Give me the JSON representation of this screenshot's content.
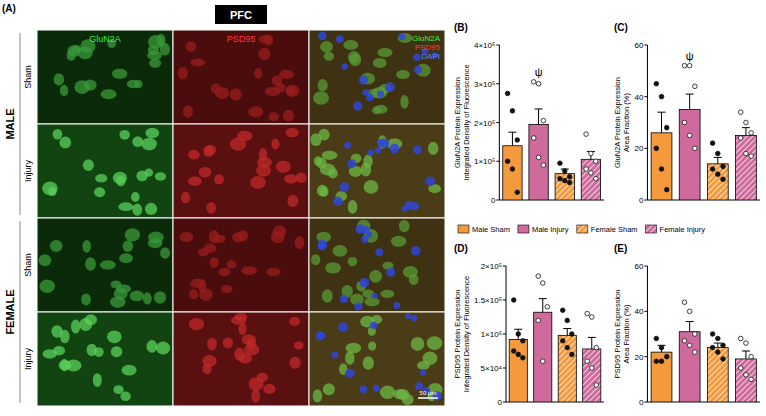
{
  "panel_a": {
    "label": "(A)",
    "region": "PFC",
    "channels": [
      "GluN2A",
      "PSD95"
    ],
    "merge": [
      "GluN2A",
      "PSD95",
      "DAPI"
    ],
    "channel_colors": [
      "#3df03d",
      "#ff3a3a",
      "#5b86ff"
    ],
    "sexes": [
      {
        "label": "MALE",
        "rows": [
          "Sham",
          "Injury"
        ]
      },
      {
        "label": "FEMALE",
        "rows": [
          "Sham",
          "Injury"
        ]
      }
    ],
    "scale_bar": "50 μm"
  },
  "shared_legend": {
    "entries": [
      {
        "name": "Male Sham",
        "color": "#f59a3c"
      },
      {
        "name": "Male Injury",
        "color": "#cf6a9c"
      },
      {
        "name": "Female Sham",
        "color": "#f59a3c"
      },
      {
        "name": "Female Injury",
        "color": "#cf6a9c"
      }
    ]
  },
  "chart_data": [
    {
      "type": "bar",
      "panel": "(B)",
      "ylabel": [
        "GluN2A Protein Expression",
        "Integrated Density of Fluorescence"
      ],
      "categories": [
        null,
        null,
        null,
        null
      ],
      "values": [
        140000,
        195000,
        68000,
        105000
      ],
      "errors": [
        35000,
        40000,
        12000,
        20000
      ],
      "points": [
        [
          275000,
          230000,
          155000,
          100000,
          80000,
          20000
        ],
        [
          305000,
          300000,
          205000,
          160000,
          110000,
          90000
        ],
        [
          95000,
          75000,
          60000,
          55000,
          50000,
          45000
        ],
        [
          170000,
          120000,
          100000,
          80000,
          70000,
          55000
        ]
      ],
      "colors": [
        "#f59a3c",
        "#cf6a9c",
        "#f59a3c",
        "#cf6a9c"
      ],
      "ylim": [
        0,
        400000
      ],
      "yticks": [
        0,
        {
          "value": 100000,
          "label": "1×10⁵"
        },
        {
          "value": 200000,
          "label": "2×10⁵"
        },
        {
          "value": 300000,
          "label": "3×10⁵"
        },
        {
          "value": 400000,
          "label": "4×10⁵"
        }
      ],
      "tick_labels": "y",
      "annotations": [
        {
          "text": "ψ",
          "category_index": 1
        }
      ]
    },
    {
      "type": "bar",
      "panel": "(C)",
      "ylabel": [
        "GluN2A Protein Expression",
        "Area Fraction (%)"
      ],
      "categories": [
        null,
        null,
        null,
        null
      ],
      "values": [
        26,
        35,
        14,
        25
      ],
      "errors": [
        8,
        6,
        2.5,
        3
      ],
      "points": [
        [
          45,
          40,
          28,
          20,
          12,
          4
        ],
        [
          52,
          52,
          44,
          30,
          25,
          20
        ],
        [
          22,
          18,
          13,
          12,
          10,
          8
        ],
        [
          34,
          30,
          26,
          24,
          18,
          17
        ]
      ],
      "colors": [
        "#f59a3c",
        "#cf6a9c",
        "#f59a3c",
        "#cf6a9c"
      ],
      "ylim": [
        0,
        60
      ],
      "yticks": [
        0,
        20,
        40,
        60
      ],
      "tick_labels": "y",
      "annotations": [
        {
          "text": "ψ",
          "category_index": 1
        }
      ]
    },
    {
      "type": "bar",
      "panel": "(D)",
      "ylabel": [
        "PSD95 Protein Expression",
        "Integrated Density of Fluorescence"
      ],
      "categories": [
        null,
        null,
        null,
        null
      ],
      "values": [
        92000,
        132000,
        98000,
        78000
      ],
      "errors": [
        15000,
        20000,
        10000,
        17000
      ],
      "points": [
        [
          150000,
          100000,
          90000,
          75000,
          70000,
          65000
        ],
        [
          185000,
          175000,
          140000,
          120000,
          60000
        ],
        [
          135000,
          120000,
          100000,
          90000,
          80000,
          70000
        ],
        [
          130000,
          125000,
          80000,
          60000,
          50000,
          25000
        ]
      ],
      "colors": [
        "#f59a3c",
        "#cf6a9c",
        "#f59a3c",
        "#cf6a9c"
      ],
      "ylim": [
        0,
        200000
      ],
      "yticks": [
        0,
        {
          "value": 50000,
          "label": "5×10⁴"
        },
        {
          "value": 100000,
          "label": "1×10⁵"
        },
        {
          "value": 150000,
          "label": "1.5×10⁵"
        },
        {
          "value": 200000,
          "label": "2×10⁵"
        }
      ],
      "tick_labels": "y"
    },
    {
      "type": "bar",
      "panel": "(E)",
      "ylabel": [
        "PSD95 Protein Expression",
        "Area Fraction (%)"
      ],
      "categories": [
        null,
        null,
        null,
        null
      ],
      "values": [
        22,
        31,
        24,
        19
      ],
      "errors": [
        3,
        4.5,
        2,
        3.5
      ],
      "points": [
        [
          28,
          24,
          20,
          18,
          18
        ],
        [
          44,
          40,
          30,
          27,
          25,
          22
        ],
        [
          30,
          28,
          25,
          24,
          22,
          19
        ],
        [
          28,
          26,
          20,
          15,
          12,
          10
        ]
      ],
      "colors": [
        "#f59a3c",
        "#cf6a9c",
        "#f59a3c",
        "#cf6a9c"
      ],
      "ylim": [
        0,
        60
      ],
      "yticks": [
        0,
        20,
        40,
        60
      ],
      "tick_labels": "y"
    }
  ]
}
